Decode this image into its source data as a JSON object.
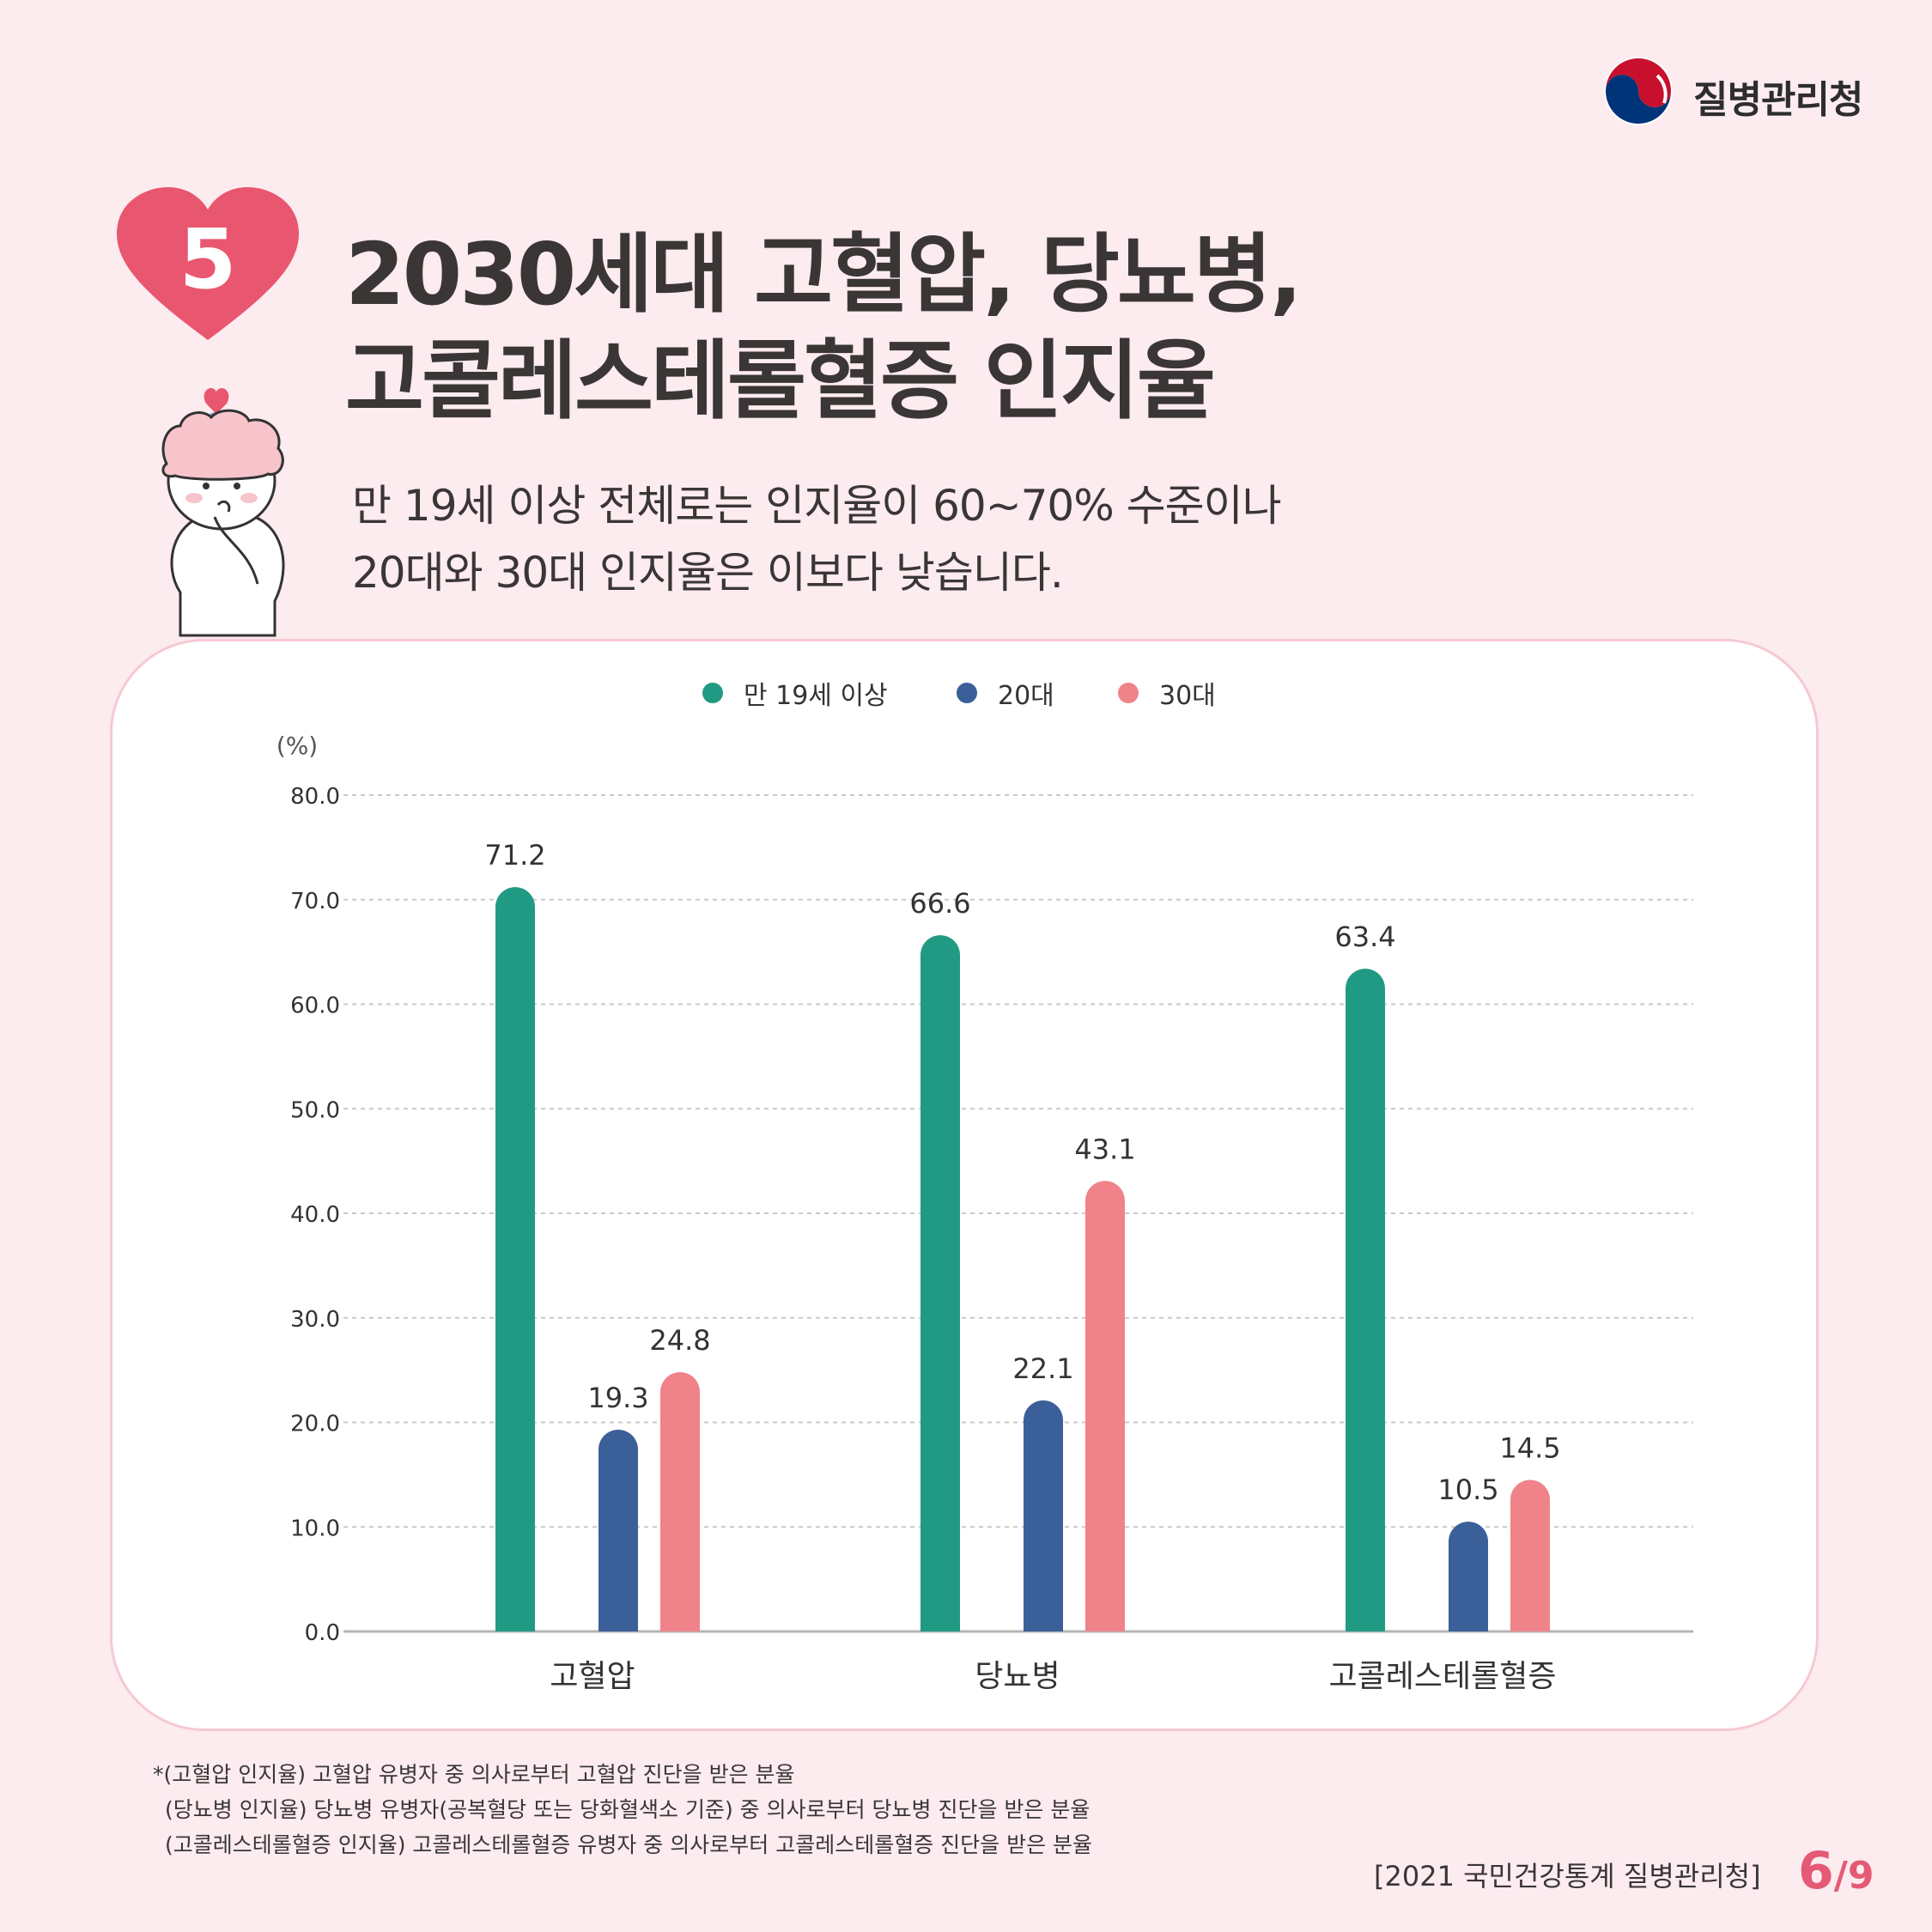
{
  "header": {
    "org_name": "질병관리청",
    "badge_number": "5"
  },
  "title_lines": [
    "2030세대 고혈압, 당뇨병,",
    "고콜레스테롤혈증 인지율"
  ],
  "subtitle_lines": [
    "만 19세 이상 전체로는 인지율이 60~70% 수준이나",
    "20대와 30대 인지율은 이보다 낮습니다."
  ],
  "colors": {
    "series_all": "#219a84",
    "series_20s": "#3b5f98",
    "series_30s": "#ef8389",
    "accent": "#e9566f",
    "background": "#fcebef"
  },
  "chart_data": {
    "type": "bar",
    "categories": [
      "고혈압",
      "당뇨병",
      "고콜레스테롤혈증"
    ],
    "series": [
      {
        "name": "만 19세 이상",
        "values": [
          71.2,
          66.6,
          63.4
        ]
      },
      {
        "name": "20대",
        "values": [
          19.3,
          22.1,
          10.5
        ]
      },
      {
        "name": "30대",
        "values": [
          24.8,
          43.1,
          14.5
        ]
      }
    ],
    "ylabel": "(%)",
    "ylim": [
      0,
      80
    ],
    "yticks": [
      "0.0",
      "10.0",
      "20.0",
      "30.0",
      "40.0",
      "50.0",
      "60.0",
      "70.0",
      "80.0"
    ],
    "grid": true,
    "legend_position": "top-center"
  },
  "footnotes": [
    "*(고혈압 인지율) 고혈압 유병자 중 의사로부터 고혈압 진단을 받은 분율",
    "(당뇨병 인지율) 당뇨병 유병자(공복혈당 또는 당화혈색소 기준) 중 의사로부터 당뇨병 진단을 받은 분율",
    "(고콜레스테롤혈증 인지율) 고콜레스테롤혈증 유병자 중 의사로부터 고콜레스테롤혈증 진단을 받은 분율"
  ],
  "source": "[2021 국민건강통계 질병관리청]",
  "page": {
    "current": "6",
    "separator": "/",
    "total": "9"
  }
}
